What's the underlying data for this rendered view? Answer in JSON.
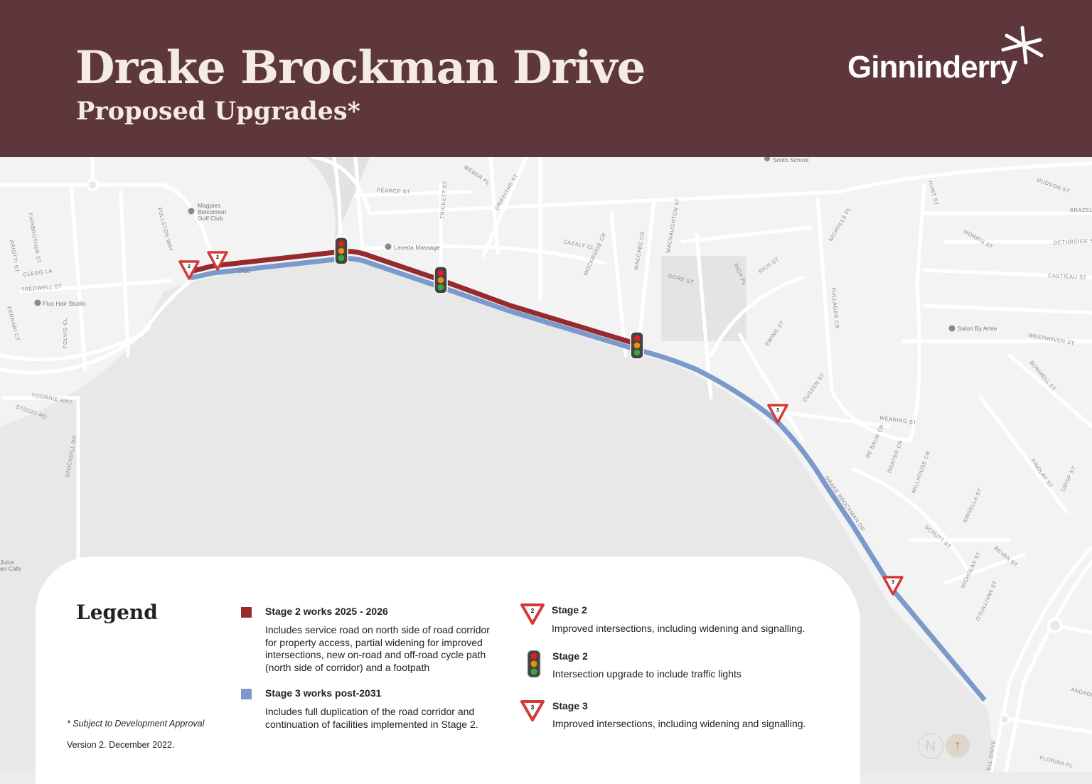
{
  "header": {
    "title": "Drake Brockman Drive",
    "subtitle": "Proposed Upgrades*",
    "logo_text": "Ginninderry",
    "background_color": "#5e373c"
  },
  "map": {
    "pois": [
      {
        "name": "Magpies Belconnen Golf Club",
        "icon": "golf-icon"
      },
      {
        "name": "Flux Hair Studio",
        "icon": "shop-icon"
      },
      {
        "name": "Laveda Massage",
        "icon": "spa-icon"
      },
      {
        "name": "Smith School",
        "icon": "school-icon"
      },
      {
        "name": "Salon By Amie",
        "icon": "shop-icon"
      },
      {
        "name": "Juice",
        "icon": ""
      },
      {
        "name": "en Cafe",
        "icon": ""
      },
      {
        "name": "Club",
        "icon": ""
      }
    ],
    "streets": [
      "FAIRBROTHER ST",
      "ARIOTTI ST",
      "CLEGG LA",
      "TREDWELL ST",
      "FERRARI CT",
      "FOLVIG CL",
      "YOORNIE WAY",
      "STUDIO RD",
      "STOCKDILL DR",
      "FULLSTON WAY",
      "PEARCE ST",
      "WEBER PL",
      "TRICKETT ST",
      "GRIFFITHS ST",
      "CAZALY CL",
      "MOCKRIDGE CR",
      "MACCABE CR",
      "MACNAUGHTON ST",
      "GORE ST",
      "RICH PL",
      "RICH ST",
      "NICHOLLS PL",
      "HUNT ST",
      "FULLAGAR CR",
      "EWING ST",
      "CUSSEN ST",
      "MORRIS ST",
      "HUDSON ST",
      "BRAZEL ST",
      "DETHRIDGE ST",
      "CASTIEAU ST",
      "WESTHOVEN ST",
      "BONWELL ST",
      "WEARING ST",
      "DE BAUN CR",
      "DRAPER CR",
      "MILLHOUSE CR",
      "FINDLAY ST",
      "CRISP ST",
      "SCHUTT ST",
      "KINSELLA ST",
      "BEVAN ST",
      "NICHOLAS ST",
      "O'SULLIVAN ST",
      "ANDADO PL",
      "FLORINA PL",
      "ELL DRIVE",
      "DRAKE BROCKMAN DR"
    ],
    "markers": [
      {
        "type": "give-way",
        "stage": "2"
      },
      {
        "type": "give-way",
        "stage": "2"
      },
      {
        "type": "traffic-lights",
        "stage": "2"
      },
      {
        "type": "traffic-lights",
        "stage": "2"
      },
      {
        "type": "traffic-lights",
        "stage": "2"
      },
      {
        "type": "give-way",
        "stage": "3"
      },
      {
        "type": "give-way",
        "stage": "3"
      }
    ],
    "compass": {
      "north_label": "N",
      "arrow_icon": "arrow-up-icon"
    },
    "stage2_color": "#962a2e",
    "stage3_color": "#7b9acb"
  },
  "legend": {
    "title": "Legend",
    "note": "* Subject to Development Approval",
    "version": "Version 2. December 2022.",
    "items": [
      {
        "heading": "Stage 2 works 2025 - 2026",
        "text": "Includes service road on north side of road corridor for property access, partial widening for improved intersections, new on-road and off-road cycle path (north side of corridor) and a footpath",
        "color": "#962a2e"
      },
      {
        "heading": "Stage 3 works post-2031",
        "text": "Includes full duplication of the road corridor and continuation of facilities implemented in Stage 2.",
        "color": "#7b9acb"
      },
      {
        "heading": "Stage 2",
        "text": "Improved intersections, including widening and signalling.",
        "icon": "give-way-2-icon",
        "number": "2"
      },
      {
        "heading": "Stage 2",
        "text": "Intersection upgrade to include traffic lights",
        "icon": "traffic-lights-icon"
      },
      {
        "heading": "Stage 3",
        "text": "Improved intersections, including widening and signalling.",
        "icon": "give-way-3-icon",
        "number": "3"
      }
    ]
  }
}
